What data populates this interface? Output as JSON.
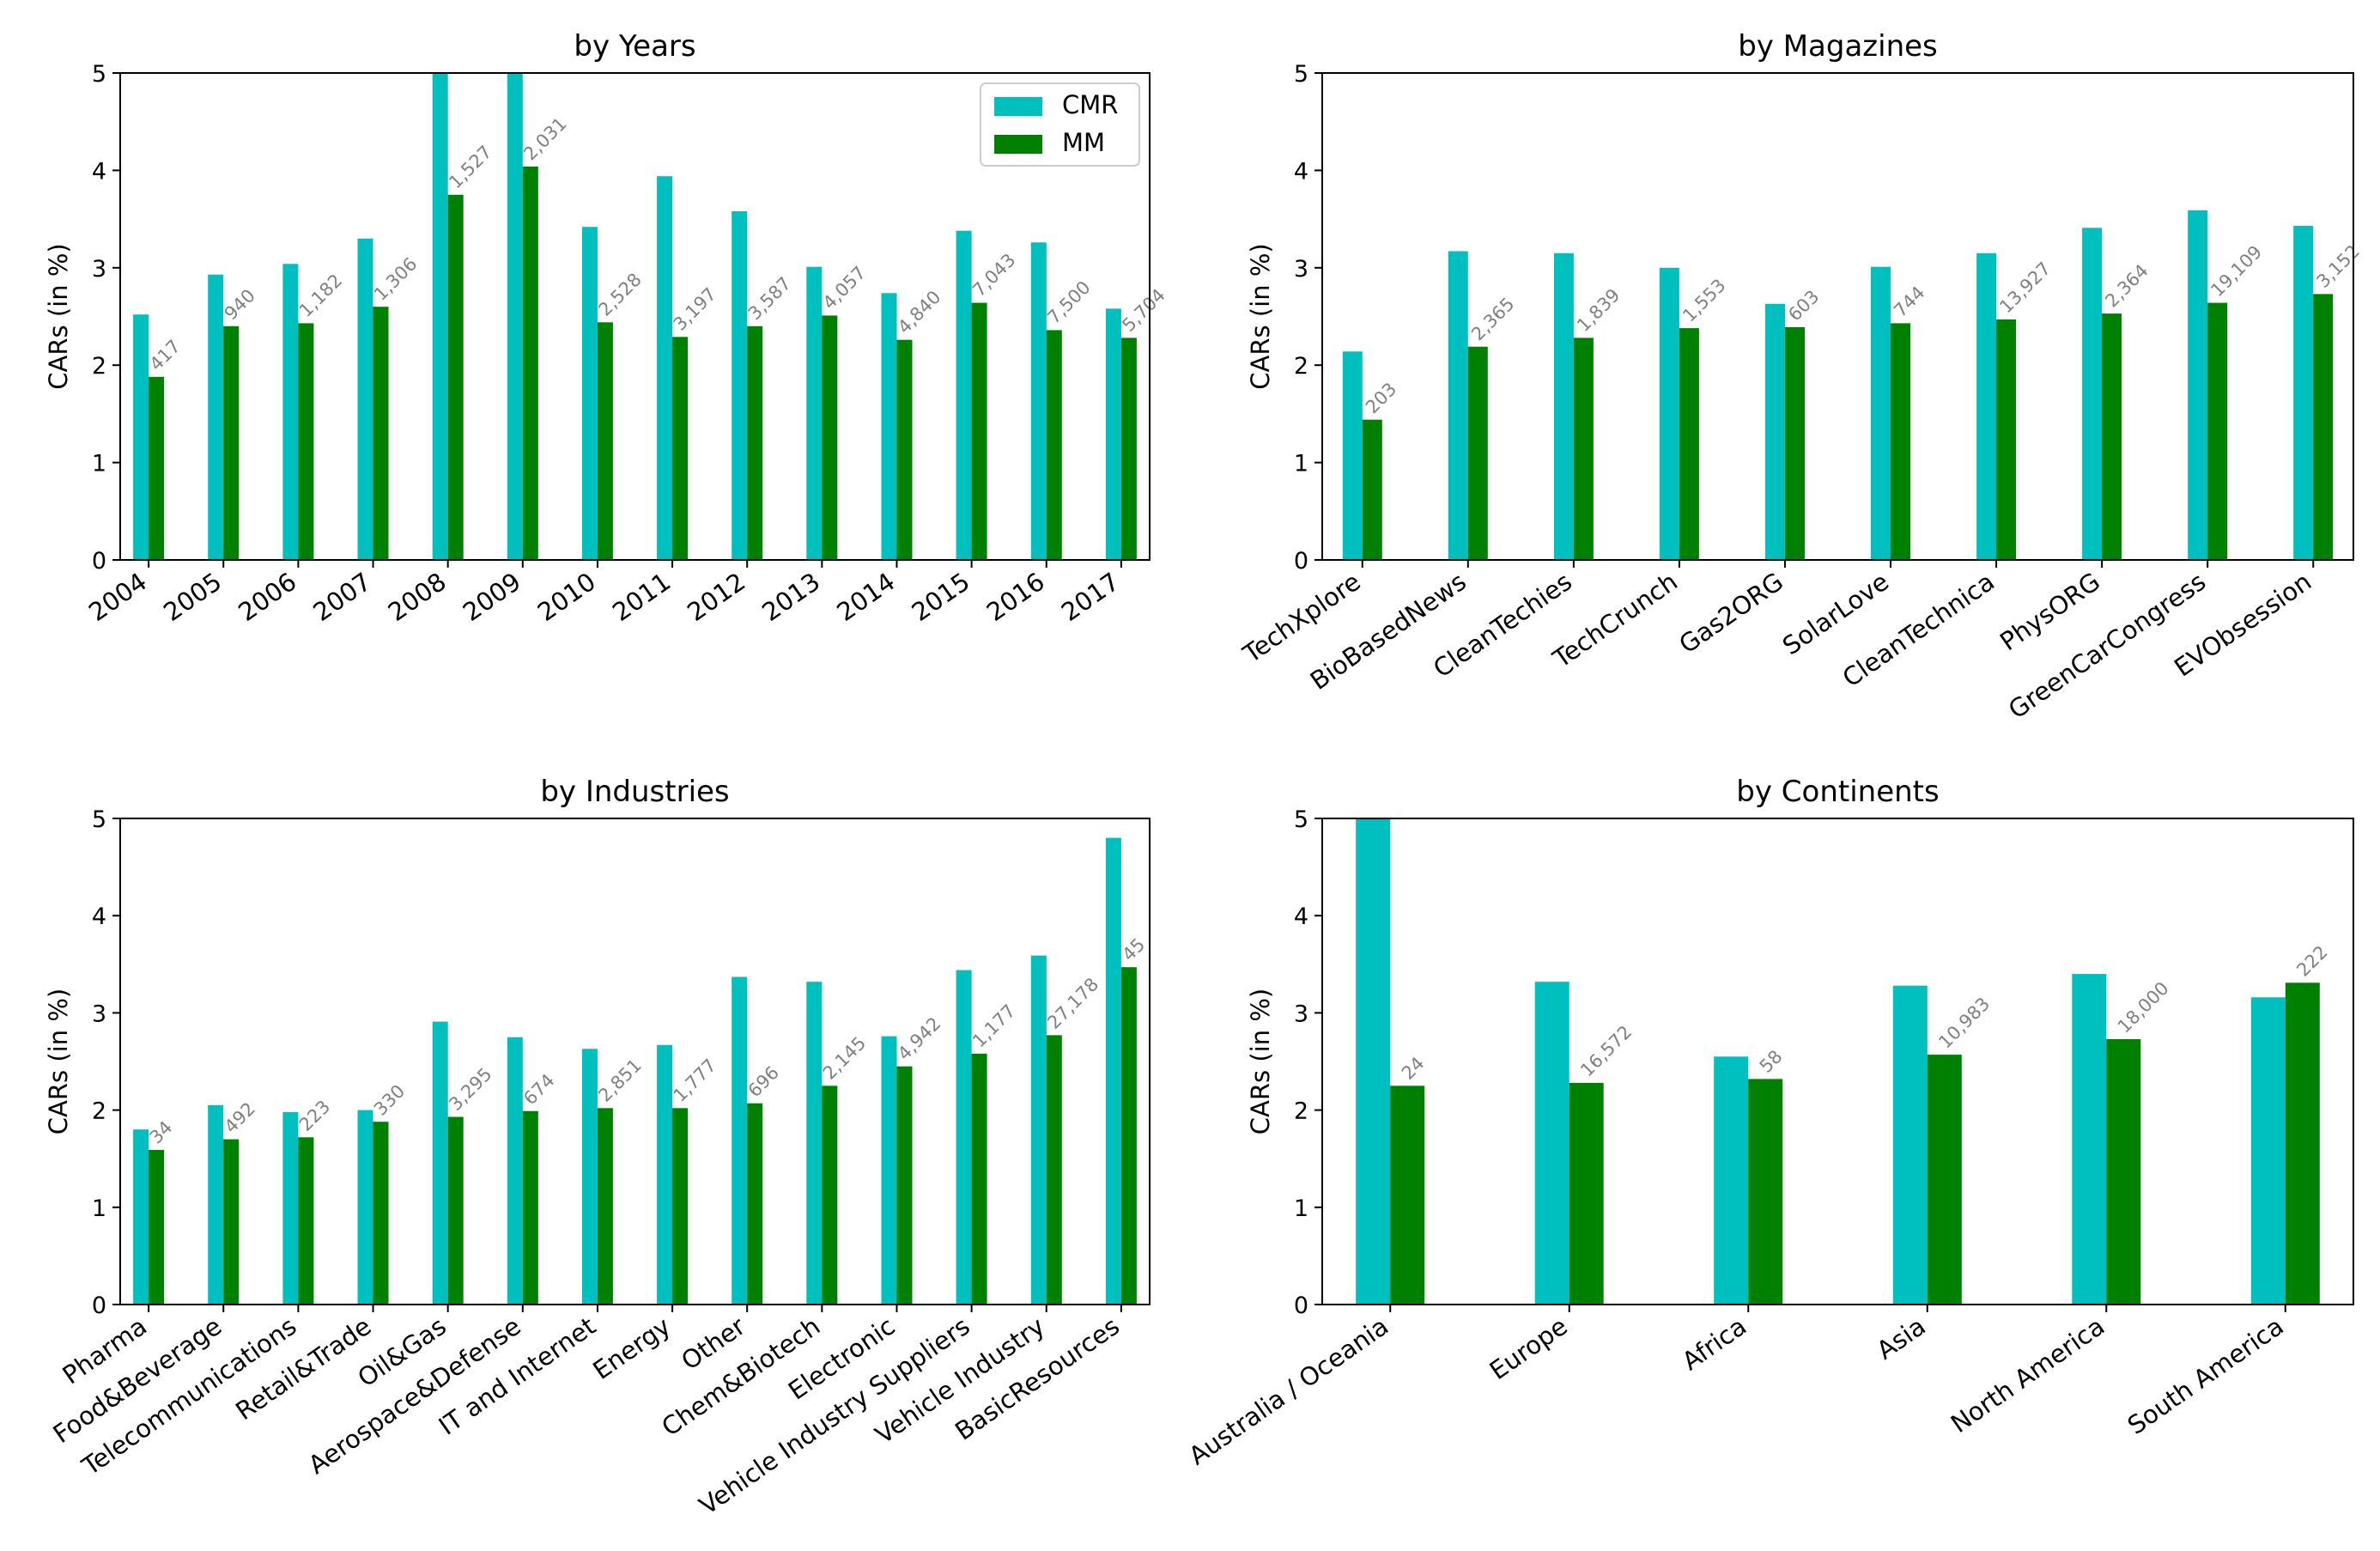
{
  "colors": {
    "cmr": "#00bfbf",
    "mm": "#008000",
    "count_label": "#808080",
    "axis": "#000000"
  },
  "legend": {
    "entries": [
      "CMR",
      "MM"
    ],
    "placement": "upper right"
  },
  "chart_data": [
    {
      "type": "bar",
      "title": "by Years",
      "ylabel": "CARs (in %)",
      "ylim": [
        0,
        5
      ],
      "yticks": [
        "0",
        "1",
        "2",
        "3",
        "4",
        "5"
      ],
      "categories": [
        "2004",
        "2005",
        "2006",
        "2007",
        "2008",
        "2009",
        "2010",
        "2011",
        "2012",
        "2013",
        "2014",
        "2015",
        "2016",
        "2017"
      ],
      "series": [
        {
          "name": "CMR",
          "values": [
            2.52,
            2.93,
            3.04,
            3.3,
            5.0,
            5.0,
            3.42,
            3.94,
            3.58,
            3.01,
            2.74,
            3.38,
            3.26,
            2.58
          ]
        },
        {
          "name": "MM",
          "values": [
            1.88,
            2.4,
            2.43,
            2.6,
            3.75,
            4.04,
            2.44,
            2.29,
            2.4,
            2.51,
            2.26,
            2.64,
            2.36,
            2.28
          ]
        }
      ],
      "bar_labels": [
        "417",
        "940",
        "1,182",
        "1,306",
        "1,527",
        "2,031",
        "2,528",
        "3,197",
        "3,587",
        "4,057",
        "4,840",
        "7,043",
        "7,500",
        "5,704"
      ],
      "show_legend": true
    },
    {
      "type": "bar",
      "title": "by Magazines",
      "ylabel": "CARs (in %)",
      "ylim": [
        0,
        5
      ],
      "yticks": [
        "0",
        "1",
        "2",
        "3",
        "4",
        "5"
      ],
      "categories": [
        "TechXplore",
        "BioBasedNews",
        "CleanTechies",
        "TechCrunch",
        "Gas2ORG",
        "SolarLove",
        "CleanTechnica",
        "PhysORG",
        "GreenCarCongress",
        "EVObsession"
      ],
      "series": [
        {
          "name": "CMR",
          "values": [
            2.14,
            3.17,
            3.15,
            3.0,
            2.63,
            3.01,
            3.15,
            3.41,
            3.59,
            3.43
          ]
        },
        {
          "name": "MM",
          "values": [
            1.44,
            2.19,
            2.28,
            2.38,
            2.39,
            2.43,
            2.47,
            2.53,
            2.64,
            2.73
          ]
        }
      ],
      "bar_labels": [
        "203",
        "2,365",
        "1,839",
        "1,553",
        "603",
        "744",
        "13,927",
        "2,364",
        "19,109",
        "3,152"
      ],
      "show_legend": false
    },
    {
      "type": "bar",
      "title": "by Industries",
      "ylabel": "CARs (in %)",
      "ylim": [
        0,
        5
      ],
      "yticks": [
        "0",
        "1",
        "2",
        "3",
        "4",
        "5"
      ],
      "categories": [
        "Pharma",
        "Food&Beverage",
        "Telecommunications",
        "Retail&Trade",
        "Oil&Gas",
        "Aerospace&Defense",
        "IT and Internet",
        "Energy",
        "Other",
        "Chem&Biotech",
        "Electronic",
        "Vehicle Industry Suppliers",
        "Vehicle Industry",
        "BasicResources"
      ],
      "series": [
        {
          "name": "CMR",
          "values": [
            1.8,
            2.05,
            1.98,
            2.0,
            2.91,
            2.75,
            2.63,
            2.67,
            3.37,
            3.32,
            2.76,
            3.44,
            3.59,
            4.8
          ]
        },
        {
          "name": "MM",
          "values": [
            1.59,
            1.7,
            1.72,
            1.88,
            1.93,
            1.99,
            2.02,
            2.02,
            2.07,
            2.25,
            2.45,
            2.58,
            2.77,
            3.47
          ]
        }
      ],
      "bar_labels": [
        "34",
        "492",
        "223",
        "330",
        "3,295",
        "674",
        "2,851",
        "1,777",
        "696",
        "2,145",
        "4,942",
        "1,177",
        "27,178",
        "45"
      ],
      "show_legend": false
    },
    {
      "type": "bar",
      "title": "by Continents",
      "ylabel": "CARs (in %)",
      "ylim": [
        0,
        5
      ],
      "yticks": [
        "0",
        "1",
        "2",
        "3",
        "4",
        "5"
      ],
      "categories": [
        "Australia / Oceania",
        "Europe",
        "Africa",
        "Asia",
        "North America",
        "South America"
      ],
      "series": [
        {
          "name": "CMR",
          "values": [
            5.0,
            3.32,
            2.55,
            3.28,
            3.4,
            3.16
          ]
        },
        {
          "name": "MM",
          "values": [
            2.25,
            2.28,
            2.32,
            2.57,
            2.73,
            3.31
          ]
        }
      ],
      "bar_labels": [
        "24",
        "16,572",
        "58",
        "10,983",
        "18,000",
        "222"
      ],
      "show_legend": false
    }
  ]
}
